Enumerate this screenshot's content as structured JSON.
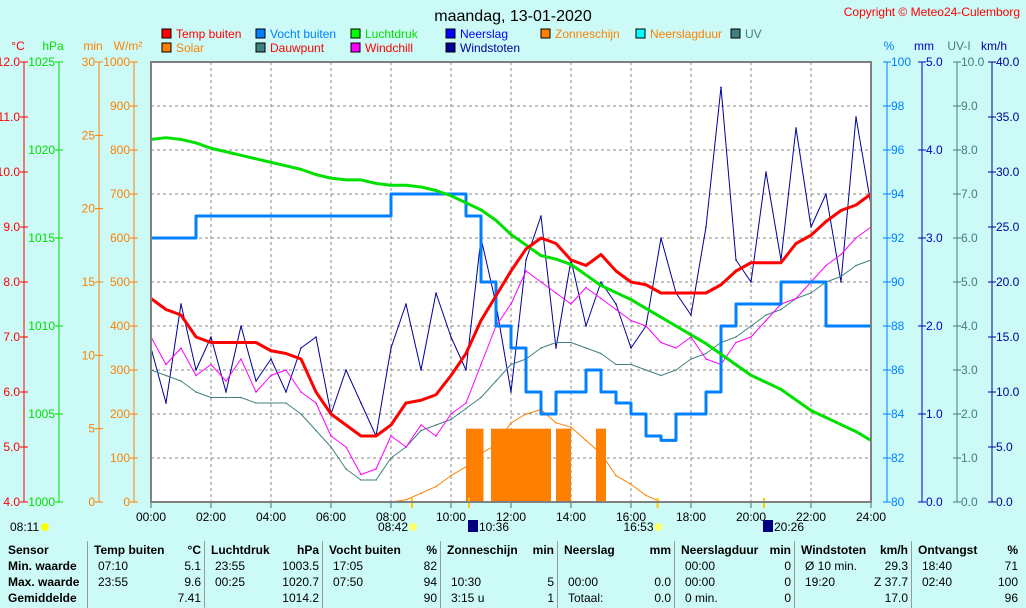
{
  "title": "maandag, 13-01-2020",
  "copyright": "Copyright © Meteo24-Culemborg",
  "colors": {
    "temp": "#ff0000",
    "solar": "#ff8000",
    "vocht": "#0080ff",
    "dauwpunt": "#408080",
    "luchtdruk": "#00e000",
    "windchill": "#ff00ff",
    "neerslag": "#0000ff",
    "windstoten": "#000099",
    "zonneschijn": "#ff8000",
    "neerslagduur": "#00ffff",
    "uv": "#408080"
  },
  "legend": [
    {
      "label": "Temp buiten",
      "color": "#ff0000",
      "text_color": "#ff0000"
    },
    {
      "label": "Solar",
      "color": "#ff8000",
      "text_color": "#ff8000"
    },
    {
      "label": "Vocht buiten",
      "color": "#0080ff",
      "text_color": "#0080ff"
    },
    {
      "label": "Dauwpunt",
      "color": "#408080",
      "text_color": "#ff0000"
    },
    {
      "label": "Luchtdruk",
      "color": "#00ff00",
      "text_color": "#00e000"
    },
    {
      "label": "Windchill",
      "color": "#ff00ff",
      "text_color": "#ff0000"
    },
    {
      "label": "Neerslag",
      "color": "#0000ff",
      "text_color": "#0000ff"
    },
    {
      "label": "Windstoten",
      "color": "#000099",
      "text_color": "#000099"
    },
    {
      "label": "Zonneschijn",
      "color": "#ff8000",
      "text_color": "#ff8000"
    },
    {
      "label": "Neerslagduur",
      "color": "#00ffff",
      "text_color": "#ff8000"
    },
    {
      "label": "UV",
      "color": "#408080",
      "text_color": "#408080"
    }
  ],
  "chart_data": {
    "type": "line",
    "grid": true,
    "x_ticks": [
      "00:00",
      "02:00",
      "04:00",
      "06:00",
      "08:00",
      "10:00",
      "12:00",
      "14:00",
      "16:00",
      "18:00",
      "20:00",
      "22:00",
      "24:00"
    ],
    "axes": {
      "left": [
        {
          "unit": "°C",
          "range": [
            4,
            12
          ],
          "ticks": [
            "12.0",
            "11.0",
            "10.0",
            "9.0",
            "8.0",
            "7.0",
            "6.0",
            "5.0",
            "4.0"
          ],
          "color": "#ff0000"
        },
        {
          "unit": "hPa",
          "range": [
            1000,
            1025
          ],
          "ticks": [
            "1025",
            "1020",
            "1015",
            "1010",
            "1005",
            "1000"
          ],
          "color": "#00e000"
        },
        {
          "unit": "min",
          "range": [
            0,
            30
          ],
          "ticks": [
            "30",
            "25",
            "20",
            "15",
            "10",
            "5",
            "0"
          ],
          "color": "#ff8000"
        },
        {
          "unit": "W/m²",
          "range": [
            0,
            1000
          ],
          "ticks": [
            "1000",
            "900",
            "800",
            "700",
            "600",
            "500",
            "400",
            "300",
            "200",
            "100",
            "0"
          ],
          "color": "#ff8000"
        }
      ],
      "right": [
        {
          "unit": "%",
          "range": [
            80,
            100
          ],
          "ticks": [
            "100",
            "98",
            "96",
            "94",
            "92",
            "90",
            "88",
            "86",
            "84",
            "82",
            "80"
          ],
          "color": "#0080ff"
        },
        {
          "unit": "mm",
          "range": [
            0,
            5
          ],
          "ticks": [
            "5.0",
            "4.0",
            "3.0",
            "2.0",
            "1.0",
            "0.0"
          ],
          "color": "#0000cc"
        },
        {
          "unit": "UV-I",
          "range": [
            0,
            10
          ],
          "ticks": [
            "10.0",
            "9.0",
            "8.0",
            "7.0",
            "6.0",
            "5.0",
            "4.0",
            "3.0",
            "2.0",
            "1.0",
            "0.0"
          ],
          "color": "#408080"
        },
        {
          "unit": "km/h",
          "range": [
            0,
            40
          ],
          "ticks": [
            "40.0",
            "35.0",
            "30.0",
            "25.0",
            "20.0",
            "15.0",
            "10.0",
            "5.0",
            "0.0"
          ],
          "color": "#000099"
        }
      ]
    },
    "x": [
      "00:00",
      "00:30",
      "01:00",
      "01:30",
      "02:00",
      "02:30",
      "03:00",
      "03:30",
      "04:00",
      "04:30",
      "05:00",
      "05:30",
      "06:00",
      "06:30",
      "07:00",
      "07:30",
      "08:00",
      "08:30",
      "09:00",
      "09:30",
      "10:00",
      "10:30",
      "11:00",
      "11:30",
      "12:00",
      "12:30",
      "13:00",
      "13:30",
      "14:00",
      "14:30",
      "15:00",
      "15:30",
      "16:00",
      "16:30",
      "17:00",
      "17:30",
      "18:00",
      "18:30",
      "19:00",
      "19:30",
      "20:00",
      "20:30",
      "21:00",
      "21:30",
      "22:00",
      "22:30",
      "23:00",
      "23:30",
      "24:00"
    ],
    "series": [
      {
        "name": "Windstoten",
        "axis": "km/h",
        "values": [
          14,
          9,
          18,
          12,
          15,
          10,
          16,
          11,
          13,
          10,
          14,
          15,
          8,
          12,
          9,
          6,
          14,
          18,
          12,
          19,
          15,
          12,
          24,
          18,
          10,
          22,
          26,
          14,
          22,
          16,
          20,
          18,
          14,
          16,
          24,
          19,
          17,
          25,
          37.7,
          22,
          20,
          30,
          22,
          34,
          25,
          28,
          20,
          35,
          27
        ]
      },
      {
        "name": "Dauwpunt",
        "axis": "°C",
        "values": [
          6.4,
          6.3,
          6.2,
          6.0,
          5.9,
          5.9,
          5.9,
          5.8,
          5.8,
          5.8,
          5.6,
          5.3,
          5.0,
          4.6,
          4.4,
          4.4,
          4.8,
          5.0,
          5.3,
          5.4,
          5.5,
          5.7,
          5.9,
          6.2,
          6.5,
          6.6,
          6.8,
          6.9,
          6.9,
          6.8,
          6.7,
          6.5,
          6.5,
          6.4,
          6.3,
          6.4,
          6.6,
          6.7,
          6.9,
          7.0,
          7.2,
          7.4,
          7.5,
          7.7,
          7.8,
          8.0,
          8.1,
          8.3,
          8.4
        ]
      },
      {
        "name": "Windchill",
        "axis": "°C",
        "values": [
          7.0,
          6.5,
          6.8,
          6.3,
          6.5,
          6.2,
          6.6,
          6.0,
          6.3,
          6.4,
          6.0,
          5.8,
          5.2,
          5.0,
          4.5,
          4.6,
          5.2,
          5.0,
          5.4,
          5.2,
          5.6,
          5.8,
          6.5,
          7.2,
          7.6,
          8.2,
          8.0,
          7.8,
          7.6,
          7.9,
          7.7,
          7.5,
          7.3,
          7.2,
          6.9,
          6.8,
          7.0,
          6.6,
          6.5,
          6.9,
          7.0,
          7.3,
          7.6,
          7.7,
          8.0,
          8.3,
          8.5,
          8.8,
          9.0
        ]
      },
      {
        "name": "Solar",
        "axis": "W/m²",
        "values": [
          0,
          0,
          0,
          0,
          0,
          0,
          0,
          0,
          0,
          0,
          0,
          0,
          0,
          0,
          0,
          0,
          0,
          5,
          20,
          35,
          60,
          80,
          110,
          130,
          180,
          200,
          210,
          180,
          170,
          140,
          110,
          60,
          40,
          15,
          0,
          0,
          0,
          0,
          0,
          0,
          0,
          0,
          0,
          0,
          0,
          0,
          0,
          0,
          0
        ]
      },
      {
        "name": "Vocht buiten",
        "axis": "%",
        "step": true,
        "values": [
          92,
          92,
          92,
          93,
          93,
          93,
          93,
          93,
          93,
          93,
          93,
          93,
          93,
          93,
          93,
          93,
          94,
          94,
          94,
          94,
          94,
          93,
          90,
          88,
          87,
          85,
          84,
          85,
          85,
          86,
          85,
          84.5,
          84,
          83,
          82.8,
          84,
          84,
          85,
          88,
          89,
          89,
          89,
          90,
          90,
          90,
          88,
          88,
          88,
          88
        ]
      },
      {
        "name": "Luchtdruk",
        "axis": "hPa",
        "values": [
          1020.6,
          1020.7,
          1020.6,
          1020.4,
          1020.1,
          1019.9,
          1019.7,
          1019.5,
          1019.3,
          1019.1,
          1018.9,
          1018.6,
          1018.4,
          1018.3,
          1018.3,
          1018.1,
          1018.0,
          1018.0,
          1017.9,
          1017.7,
          1017.4,
          1017.0,
          1016.6,
          1016.0,
          1015.2,
          1014.6,
          1014.0,
          1013.8,
          1013.5,
          1012.9,
          1012.3,
          1011.9,
          1011.5,
          1011.0,
          1010.5,
          1010.0,
          1009.5,
          1009.0,
          1008.4,
          1007.8,
          1007.2,
          1006.8,
          1006.4,
          1005.8,
          1005.2,
          1004.8,
          1004.4,
          1004.0,
          1003.5
        ]
      },
      {
        "name": "Temp buiten",
        "axis": "°C",
        "values": [
          7.7,
          7.5,
          7.4,
          7.0,
          6.9,
          6.9,
          6.9,
          6.9,
          6.75,
          6.7,
          6.6,
          6.0,
          5.6,
          5.4,
          5.2,
          5.2,
          5.4,
          5.8,
          5.85,
          5.95,
          6.3,
          6.7,
          7.3,
          7.75,
          8.2,
          8.6,
          8.8,
          8.7,
          8.4,
          8.3,
          8.5,
          8.2,
          8.0,
          7.95,
          7.8,
          7.8,
          7.8,
          7.8,
          7.95,
          8.2,
          8.35,
          8.35,
          8.35,
          8.7,
          8.85,
          9.1,
          9.3,
          9.4,
          9.6
        ]
      }
    ],
    "zonneschijn_bars": [
      {
        "from": "10:30",
        "to": "11:05",
        "min": 5
      },
      {
        "from": "11:20",
        "to": "13:20",
        "min": 5
      },
      {
        "from": "13:30",
        "to": "14:00",
        "min": 5
      },
      {
        "from": "14:50",
        "to": "15:10",
        "min": 5
      }
    ]
  },
  "sun_markers": [
    {
      "time": "08:11",
      "label": "08:11",
      "row": 2
    },
    {
      "time": "08:42",
      "label": "08:42",
      "row": 1
    },
    {
      "time": "10:36",
      "label": "10:36",
      "row": 1
    },
    {
      "time": "16:53",
      "label": "16:53",
      "row": 1
    },
    {
      "time": "20:26",
      "label": "20:26",
      "row": 1
    }
  ],
  "table": {
    "row_labels": [
      "Sensor",
      "Min. waarde",
      "Max. waarde",
      "Gemiddelde"
    ],
    "columns": [
      {
        "header": "Temp buiten",
        "unit": "°C",
        "rows": [
          [
            "07:10",
            "5.1"
          ],
          [
            "23:55",
            "9.6"
          ],
          [
            "",
            "7.41"
          ]
        ]
      },
      {
        "header": "Luchtdruk",
        "unit": "hPa",
        "rows": [
          [
            "23:55",
            "1003.5"
          ],
          [
            "00:25",
            "1020.7"
          ],
          [
            "",
            "1014.2"
          ]
        ]
      },
      {
        "header": "Vocht buiten",
        "unit": "%",
        "rows": [
          [
            "17:05",
            "82"
          ],
          [
            "07:50",
            "94"
          ],
          [
            "",
            "90"
          ]
        ]
      },
      {
        "header": "Zonneschijn",
        "unit": "min",
        "rows": [
          [
            "",
            ""
          ],
          [
            "10:30",
            "5"
          ],
          [
            "3:15 u",
            "1"
          ]
        ]
      },
      {
        "header": "Neerslag",
        "unit": "mm",
        "rows": [
          [
            "",
            ""
          ],
          [
            "00:00",
            "0.0"
          ],
          [
            "Totaal:",
            "0.0"
          ]
        ]
      },
      {
        "header": "Neerslagduur",
        "unit": "min",
        "rows": [
          [
            "00:00",
            "0"
          ],
          [
            "00:00",
            "0"
          ],
          [
            "0 min.",
            "0"
          ]
        ]
      },
      {
        "header": "Windstoten",
        "unit": "km/h",
        "rows": [
          [
            "Ø 10 min.",
            "29.3"
          ],
          [
            "19:20",
            "Z 37.7"
          ],
          [
            "",
            "17.0"
          ]
        ]
      },
      {
        "header": "Ontvangst",
        "unit": "%",
        "rows": [
          [
            "18:40",
            "71"
          ],
          [
            "02:40",
            "100"
          ],
          [
            "",
            "96"
          ]
        ]
      }
    ]
  }
}
